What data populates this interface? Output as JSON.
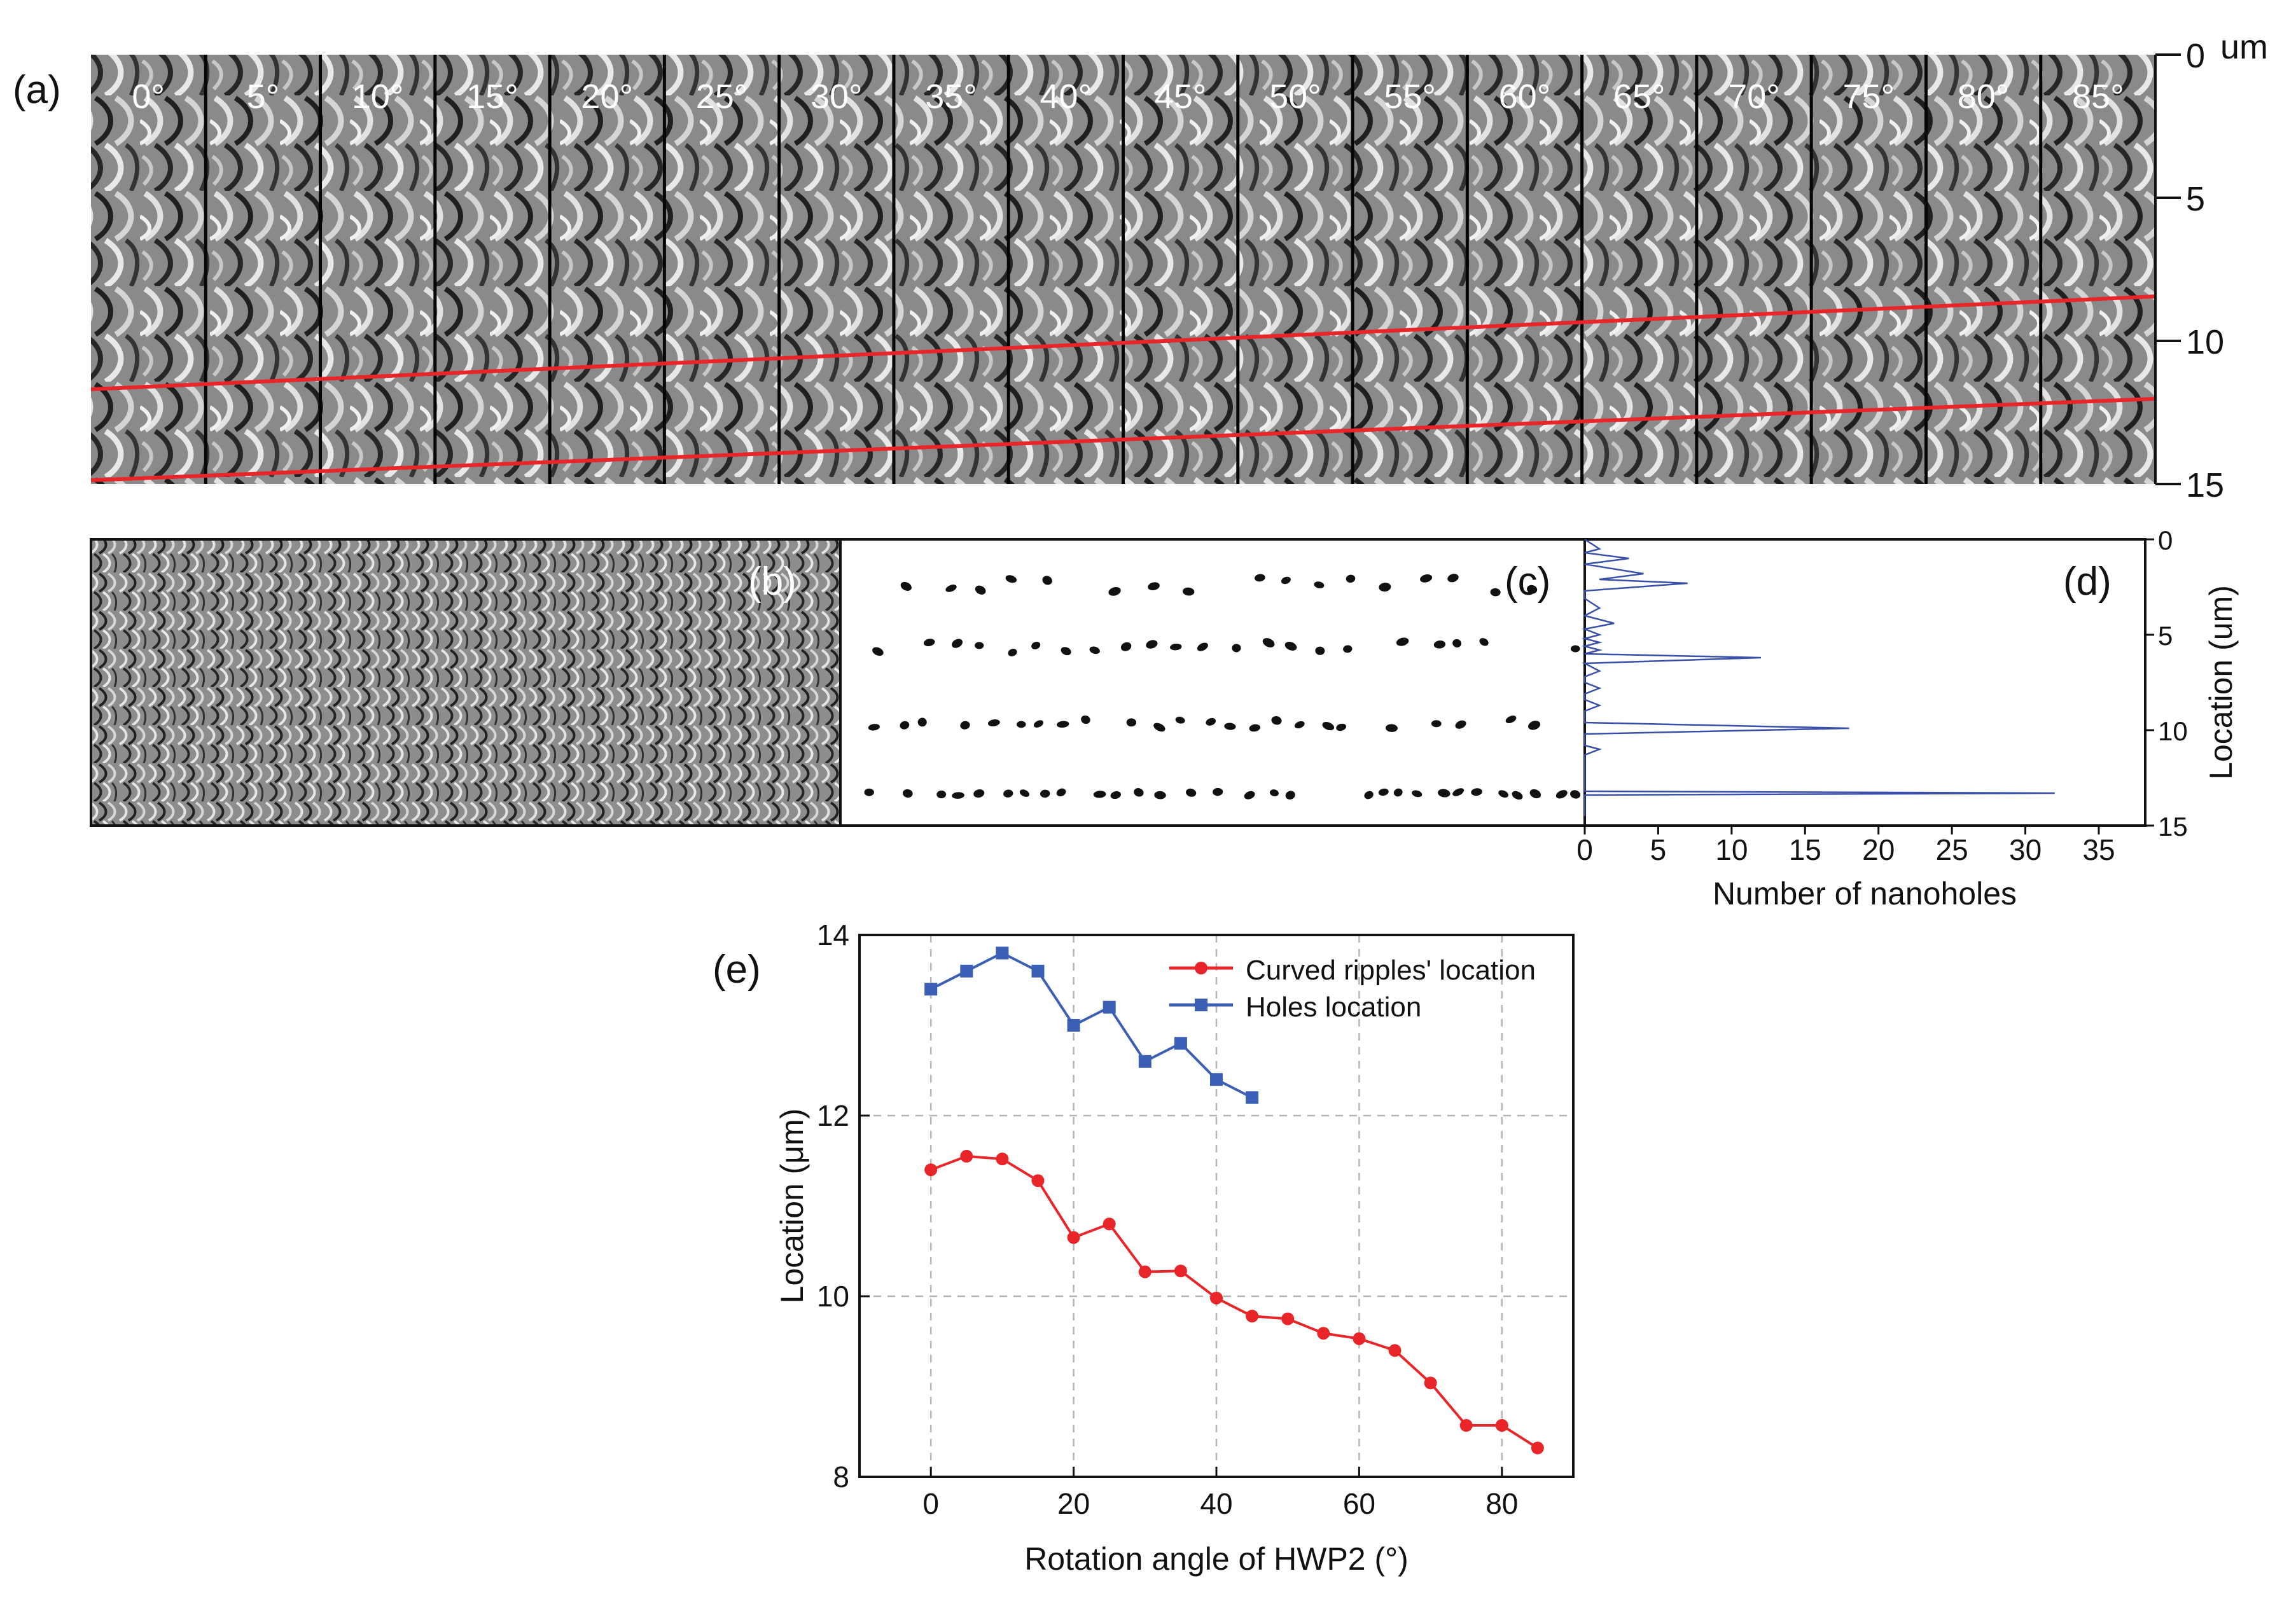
{
  "panel_labels": {
    "a": "(a)",
    "b": "(b)",
    "c": "(c)",
    "d": "(d)",
    "e": "(e)"
  },
  "panel_a": {
    "angle_labels": [
      "0°",
      "5°",
      "10°",
      "15°",
      "20°",
      "25°",
      "30°",
      "35°",
      "40°",
      "45°",
      "50°",
      "55°",
      "60°",
      "65°",
      "70°",
      "75°",
      "80°",
      "85°"
    ],
    "depth_ticks": [
      "0",
      "5",
      "10",
      "15"
    ],
    "depth_unit": "um"
  },
  "chart_data": [
    {
      "type": "line",
      "panel": "d",
      "xlabel": "Number of nanoholes",
      "ylabel": "Location (um)",
      "xlim": [
        0,
        35
      ],
      "ylim": [
        15,
        0
      ],
      "xticks": [
        0,
        5,
        10,
        15,
        20,
        25,
        30,
        35
      ],
      "yticks": [
        0,
        5,
        10,
        15
      ],
      "series": [
        {
          "color": "#3a50a8",
          "x": [
            0,
            1,
            0,
            3,
            0,
            4,
            1,
            7,
            0,
            0,
            1,
            0,
            2,
            0,
            1,
            0,
            1,
            0,
            1,
            0,
            12,
            0,
            1,
            0,
            0,
            1,
            0,
            0,
            1,
            0,
            0,
            0,
            0,
            18,
            0,
            0,
            0,
            1,
            0,
            0,
            0,
            0,
            0,
            0,
            0,
            0,
            0,
            32,
            0,
            0,
            0
          ],
          "y": [
            0.0,
            0.5,
            0.7,
            1.0,
            1.3,
            1.8,
            2.1,
            2.3,
            2.7,
            3.1,
            3.6,
            4.0,
            4.4,
            4.7,
            5.0,
            5.2,
            5.4,
            5.6,
            5.8,
            6.0,
            6.2,
            6.5,
            6.9,
            7.2,
            7.5,
            7.8,
            8.1,
            8.4,
            8.7,
            9.0,
            9.2,
            9.4,
            9.6,
            9.9,
            10.2,
            10.5,
            10.8,
            11.0,
            11.3,
            11.6,
            11.9,
            12.2,
            12.5,
            12.8,
            13.0,
            13.1,
            13.2,
            13.3,
            13.4,
            13.6,
            14.5
          ]
        }
      ]
    },
    {
      "type": "line",
      "panel": "e",
      "xlabel": "Rotation angle of HWP2 (°)",
      "ylabel": "Location (μm)",
      "xlim": [
        -10,
        90
      ],
      "ylim": [
        8,
        14
      ],
      "xticks": [
        0,
        20,
        40,
        60,
        80
      ],
      "yticks": [
        8,
        10,
        12,
        14
      ],
      "grid": true,
      "legend_position": "top-right",
      "series": [
        {
          "name": "Curved ripples' location",
          "color": "#e8262a",
          "marker": "circle",
          "x": [
            0,
            5,
            10,
            15,
            20,
            25,
            30,
            35,
            40,
            45,
            50,
            55,
            60,
            65,
            70,
            75,
            80,
            85
          ],
          "y": [
            11.4,
            11.55,
            11.52,
            11.28,
            10.65,
            10.8,
            10.27,
            10.28,
            9.98,
            9.78,
            9.75,
            9.59,
            9.53,
            9.4,
            9.04,
            8.57,
            8.57,
            8.32
          ]
        },
        {
          "name": "Holes location",
          "color": "#3a5fb5",
          "marker": "square",
          "x": [
            0,
            5,
            10,
            15,
            20,
            25,
            30,
            35,
            40,
            45
          ],
          "y": [
            13.4,
            13.6,
            13.8,
            13.6,
            13.0,
            13.2,
            12.6,
            12.8,
            12.4,
            12.2
          ]
        }
      ]
    }
  ]
}
